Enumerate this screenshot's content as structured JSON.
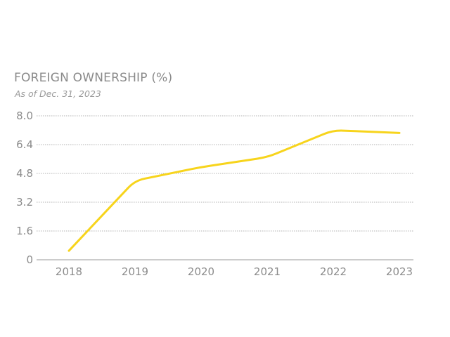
{
  "colors": {
    "series": "#f7d41c",
    "text": "#8c8c8c"
  },
  "chart_data": {
    "type": "line",
    "title": "FOREIGN OWNERSHIP",
    "title_unit": "(%)",
    "subtitle": "As of Dec. 31, 2023",
    "xlabel": "",
    "ylabel": "",
    "categories": [
      "2018",
      "2019",
      "2020",
      "2021",
      "2022",
      "2023"
    ],
    "series": [
      {
        "values": [
          0.5,
          4.4,
          5.15,
          5.7,
          7.2,
          7.05
        ]
      }
    ],
    "y_ticks": [
      "0",
      "1.6",
      "3.2",
      "4.8",
      "6.4",
      "8.0"
    ],
    "ylim": [
      0,
      8
    ],
    "grid": true,
    "legend": "none"
  }
}
